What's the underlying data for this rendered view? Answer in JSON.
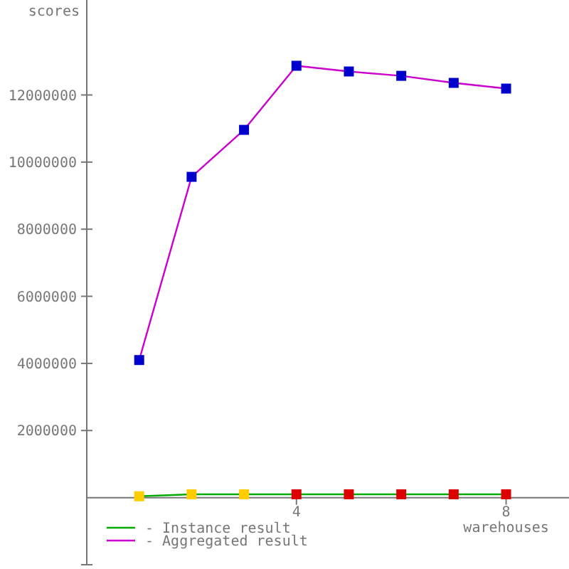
{
  "chart_data": {
    "type": "line",
    "xlabel": "warehouses",
    "ylabel": "scores",
    "x": [
      1,
      2,
      3,
      4,
      5,
      6,
      7,
      8
    ],
    "series": [
      {
        "name": "- Instance result",
        "color": "#00aa00",
        "colors": [
          "#ffcc00",
          "#ffcc00",
          "#ffcc00",
          "#dd0000",
          "#dd0000",
          "#dd0000",
          "#dd0000",
          "#dd0000"
        ],
        "values": [
          40000,
          100000,
          100000,
          100000,
          100000,
          100000,
          100000,
          100000
        ]
      },
      {
        "name": "- Aggregated result",
        "color": "#cc00cc",
        "colors": [
          "#0000cc",
          "#0000cc",
          "#0000cc",
          "#0000cc",
          "#0000cc",
          "#0000cc",
          "#0000cc",
          "#0000cc"
        ],
        "values": [
          4100000,
          9560000,
          10960000,
          12870000,
          12700000,
          12570000,
          12360000,
          12190000
        ]
      }
    ],
    "xlim": [
      0,
      9.2
    ],
    "xticks": [
      4,
      8
    ],
    "ylim": [
      -2000000,
      14830000
    ],
    "yticks": [
      {
        "value": -2000000,
        "label": null
      },
      2000000,
      4000000,
      6000000,
      8000000,
      10000000,
      12000000
    ],
    "marker": "square",
    "legend": "bottom left",
    "grid": false
  }
}
